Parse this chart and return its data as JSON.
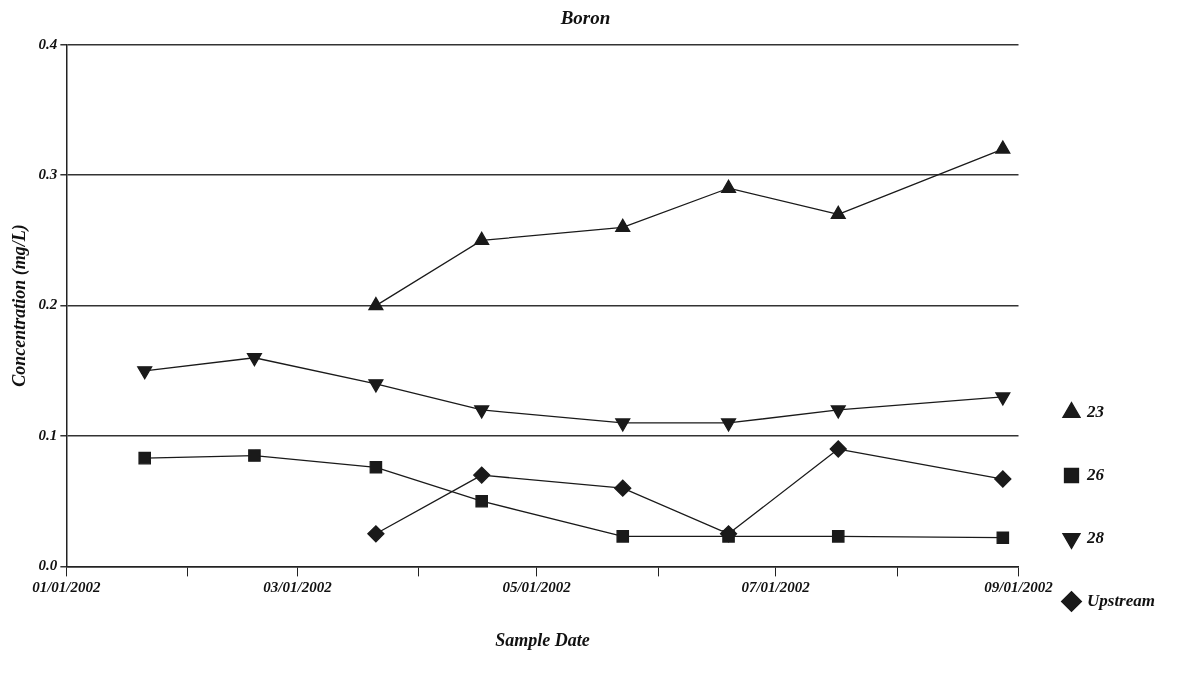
{
  "chart_data": {
    "type": "line",
    "title": "Boron",
    "xlabel": "Sample Date",
    "ylabel": "Concentration (mg/L)",
    "xlim": [
      "2002-01-01",
      "2002-09-01"
    ],
    "xticks": [
      {
        "value": "2002-01-01",
        "label": "01/01/2002"
      },
      {
        "value": "2002-02-01",
        "label": null
      },
      {
        "value": "2002-03-01",
        "label": "03/01/2002"
      },
      {
        "value": "2002-04-01",
        "label": null
      },
      {
        "value": "2002-05-01",
        "label": "05/01/2002"
      },
      {
        "value": "2002-06-01",
        "label": null
      },
      {
        "value": "2002-07-01",
        "label": "07/01/2002"
      },
      {
        "value": "2002-08-01",
        "label": null
      },
      {
        "value": "2002-09-01",
        "label": "09/01/2002"
      }
    ],
    "ylim": [
      0,
      0.4
    ],
    "yticks": [
      {
        "value": 0,
        "label": "0.0"
      },
      {
        "value": 0.1,
        "label": "0.1"
      },
      {
        "value": 0.2,
        "label": "0.2"
      },
      {
        "value": 0.3,
        "label": "0.3"
      },
      {
        "value": 0.4,
        "label": "0.4"
      }
    ],
    "grid": "y",
    "legend": "bottom right",
    "line_style": "solid",
    "series": [
      {
        "name": "23",
        "color": "#1a1a1a",
        "marker": "triangle",
        "x": [
          "2002-03-21",
          "2002-04-17",
          "2002-05-23",
          "2002-06-19",
          "2002-07-17",
          "2002-08-28"
        ],
        "values": [
          0.2,
          0.25,
          0.26,
          0.29,
          0.27,
          0.32
        ]
      },
      {
        "name": "26",
        "color": "#1a1a1a",
        "marker": "square",
        "x": [
          "2002-01-21",
          "2002-02-18",
          "2002-03-21",
          "2002-04-17",
          "2002-05-23",
          "2002-06-19",
          "2002-07-17",
          "2002-08-28"
        ],
        "values": [
          0.083,
          0.085,
          0.076,
          0.05,
          0.023,
          0.023,
          0.023,
          0.022
        ]
      },
      {
        "name": "28",
        "color": "#1a1a1a",
        "marker": "triangle-down",
        "x": [
          "2002-01-21",
          "2002-02-18",
          "2002-03-21",
          "2002-04-17",
          "2002-05-23",
          "2002-06-19",
          "2002-07-17",
          "2002-08-28"
        ],
        "values": [
          0.15,
          0.16,
          0.14,
          0.12,
          0.11,
          0.11,
          0.12,
          0.13
        ]
      },
      {
        "name": "Upstream",
        "color": "#1a1a1a",
        "marker": "diamond",
        "x": [
          "2002-03-21",
          "2002-04-17",
          "2002-05-23",
          "2002-06-19",
          "2002-07-17",
          "2002-08-28"
        ],
        "values": [
          0.025,
          0.07,
          0.06,
          0.025,
          0.09,
          0.067
        ]
      }
    ]
  }
}
